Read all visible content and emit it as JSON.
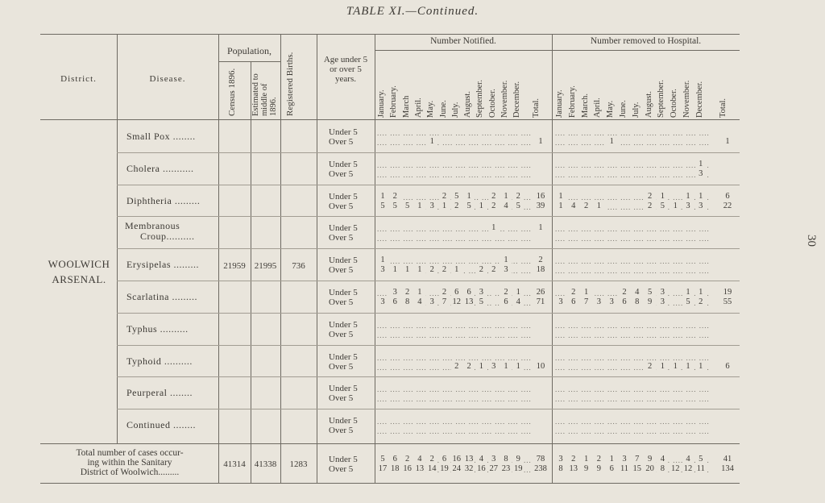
{
  "title": "TABLE XI.—Continued.",
  "page_number": "30",
  "headers": {
    "district": "District.",
    "disease": "Disease.",
    "population": "Population,",
    "census": "Census 1896.",
    "estimated": "Estimated to middle of 1896.",
    "births": "Registered Births.",
    "age": "Age under 5 or over 5 years.",
    "number_notified": "Number Notified.",
    "number_removed": "Number removed to Hospital.",
    "months_notified": [
      "January.",
      "February.",
      "March",
      "April.",
      "May.",
      "June.",
      "July.",
      "August.",
      "September.",
      "October.",
      "November.",
      "December.",
      "Total."
    ],
    "months_removed": [
      "January.",
      "February.",
      "March.",
      "April.",
      "May.",
      "June.",
      "July.",
      "August.",
      "September.",
      "October.",
      "November.",
      "December.",
      "Total."
    ]
  },
  "district": {
    "name_line1": "WOOLWICH",
    "name_line2": "ARSENAL.",
    "census": "21959",
    "estimated": "21995",
    "births": "736"
  },
  "age_labels": {
    "under": "Under 5",
    "over": "Over 5"
  },
  "diseases": [
    {
      "name": "Small Pox ........",
      "notified_under": [
        "",
        "",
        "",
        "",
        "",
        "",
        "",
        "",
        "",
        "",
        "",
        "",
        ""
      ],
      "notified_over": [
        "",
        "",
        "",
        "",
        "1",
        "",
        "",
        "",
        "",
        "",
        "",
        "",
        "1"
      ],
      "removed_under": [
        "",
        "",
        "",
        "",
        "",
        "",
        "",
        "",
        "",
        "",
        "",
        "",
        ""
      ],
      "removed_over": [
        "",
        "",
        "",
        "",
        "1",
        "",
        "",
        "",
        "",
        "",
        "",
        "",
        "1"
      ]
    },
    {
      "name": "Cholera ...........",
      "notified_under": [
        "",
        "",
        "",
        "",
        "",
        "",
        "",
        "",
        "",
        "",
        "",
        "",
        ""
      ],
      "notified_over": [
        "",
        "",
        "",
        "",
        "",
        "",
        "",
        "",
        "",
        "",
        "",
        "",
        ""
      ],
      "removed_under": [
        "",
        "",
        "",
        "",
        "",
        "",
        "",
        "",
        "",
        "",
        "",
        "1",
        ""
      ],
      "removed_over": [
        "",
        "",
        "",
        "",
        "",
        "",
        "",
        "",
        "",
        "",
        "",
        "3",
        ""
      ]
    },
    {
      "name": "Diphtheria .........",
      "notified_under": [
        "1",
        "2",
        "",
        "",
        "",
        "2",
        "5",
        "1",
        "",
        "2",
        "1",
        "2",
        "16"
      ],
      "notified_over": [
        "5",
        "5",
        "5",
        "1",
        "3",
        "1",
        "2",
        "5",
        "1",
        "2",
        "4",
        "5",
        "39"
      ],
      "removed_under": [
        "1",
        "",
        "",
        "",
        "",
        "",
        "",
        "2",
        "1",
        "",
        "1",
        "1",
        "6"
      ],
      "removed_over": [
        "1",
        "4",
        "2",
        "1",
        "",
        "",
        "",
        "2",
        "5",
        "1",
        "3",
        "3",
        "22"
      ]
    },
    {
      "name_line1": "Membranous",
      "name": "Croup..........",
      "notified_under": [
        "",
        "",
        "",
        "",
        "",
        "",
        "",
        "",
        "",
        "1",
        "",
        "",
        "1"
      ],
      "notified_over": [
        "",
        "",
        "",
        "",
        "",
        "",
        "",
        "",
        "",
        "",
        "",
        "",
        ""
      ],
      "removed_under": [
        "",
        "",
        "",
        "",
        "",
        "",
        "",
        "",
        "",
        "",
        "",
        "",
        ""
      ],
      "removed_over": [
        "",
        "",
        "",
        "",
        "",
        "",
        "",
        "",
        "",
        "",
        "",
        "",
        ""
      ]
    },
    {
      "name": "Erysipelas .........",
      "notified_under": [
        "1",
        "",
        "",
        "",
        "",
        "",
        "",
        "",
        "",
        "",
        "1",
        "",
        "2"
      ],
      "notified_over": [
        "3",
        "1",
        "1",
        "1",
        "2",
        "2",
        "1",
        "",
        "2",
        "2",
        "3",
        "",
        "18"
      ],
      "removed_under": [
        "",
        "",
        "",
        "",
        "",
        "",
        "",
        "",
        "",
        "",
        "",
        "",
        ""
      ],
      "removed_over": [
        "",
        "",
        "",
        "",
        "",
        "",
        "",
        "",
        "",
        "",
        "",
        "",
        ""
      ]
    },
    {
      "name": "Scarlatina .........",
      "notified_under": [
        "",
        "3",
        "2",
        "1",
        "",
        "2",
        "6",
        "6",
        "3",
        "",
        "2",
        "1",
        "26"
      ],
      "notified_over": [
        "3",
        "6",
        "8",
        "4",
        "3",
        "7",
        "12",
        "13",
        "5",
        "",
        "6",
        "4",
        "71"
      ],
      "removed_under": [
        "",
        "2",
        "1",
        "",
        "",
        "2",
        "4",
        "5",
        "3",
        "",
        "1",
        "1",
        "19"
      ],
      "removed_over": [
        "3",
        "6",
        "7",
        "3",
        "3",
        "6",
        "8",
        "9",
        "3",
        "",
        "5",
        "2",
        "55"
      ]
    },
    {
      "name": "Typhus ..........",
      "notified_under": [
        "",
        "",
        "",
        "",
        "",
        "",
        "",
        "",
        "",
        "",
        "",
        "",
        ""
      ],
      "notified_over": [
        "",
        "",
        "",
        "",
        "",
        "",
        "",
        "",
        "",
        "",
        "",
        "",
        ""
      ],
      "removed_under": [
        "",
        "",
        "",
        "",
        "",
        "",
        "",
        "",
        "",
        "",
        "",
        "",
        ""
      ],
      "removed_over": [
        "",
        "",
        "",
        "",
        "",
        "",
        "",
        "",
        "",
        "",
        "",
        "",
        ""
      ]
    },
    {
      "name": "Typhoid ..........",
      "notified_under": [
        "",
        "",
        "",
        "",
        "",
        "",
        "",
        "",
        "",
        "",
        "",
        "",
        ""
      ],
      "notified_over": [
        "",
        "",
        "",
        "",
        "",
        "",
        "2",
        "2",
        "1",
        "3",
        "1",
        "1",
        "10"
      ],
      "removed_under": [
        "",
        "",
        "",
        "",
        "",
        "",
        "",
        "",
        "",
        "",
        "",
        "",
        ""
      ],
      "removed_over": [
        "",
        "",
        "",
        "",
        "",
        "",
        "",
        "2",
        "1",
        "1",
        "1",
        "1",
        "6"
      ]
    },
    {
      "name": "Peurperal ........",
      "notified_under": [
        "",
        "",
        "",
        "",
        "",
        "",
        "",
        "",
        "",
        "",
        "",
        "",
        ""
      ],
      "notified_over": [
        "",
        "",
        "",
        "",
        "",
        "",
        "",
        "",
        "",
        "",
        "",
        "",
        ""
      ],
      "removed_under": [
        "",
        "",
        "",
        "",
        "",
        "",
        "",
        "",
        "",
        "",
        "",
        "",
        ""
      ],
      "removed_over": [
        "",
        "",
        "",
        "",
        "",
        "",
        "",
        "",
        "",
        "",
        "",
        "",
        ""
      ]
    },
    {
      "name": "Continued ........",
      "notified_under": [
        "",
        "",
        "",
        "",
        "",
        "",
        "",
        "",
        "",
        "",
        "",
        "",
        ""
      ],
      "notified_over": [
        "",
        "",
        "",
        "",
        "",
        "",
        "",
        "",
        "",
        "",
        "",
        "",
        ""
      ],
      "removed_under": [
        "",
        "",
        "",
        "",
        "",
        "",
        "",
        "",
        "",
        "",
        "",
        "",
        ""
      ],
      "removed_over": [
        "",
        "",
        "",
        "",
        "",
        "",
        "",
        "",
        "",
        "",
        "",
        "",
        ""
      ]
    }
  ],
  "total": {
    "label_line1": "Total number of cases occur-",
    "label_line2": "ing within the Sanitary",
    "label_line3": "District of Woolwich.........",
    "census": "41314",
    "estimated": "41338",
    "births": "1283",
    "notified_under": [
      "5",
      "6",
      "2",
      "4",
      "2",
      "6",
      "16",
      "13",
      "4",
      "3",
      "8",
      "9",
      "78"
    ],
    "notified_over": [
      "17",
      "18",
      "16",
      "13",
      "14",
      "19",
      "24",
      "32",
      "16",
      "27",
      "23",
      "19",
      "238"
    ],
    "removed_under": [
      "3",
      "2",
      "1",
      "2",
      "1",
      "3",
      "7",
      "9",
      "4",
      "",
      "4",
      "5",
      "41"
    ],
    "removed_over": [
      "8",
      "13",
      "9",
      "9",
      "6",
      "11",
      "15",
      "20",
      "8",
      "12",
      "12",
      "11",
      "134"
    ]
  }
}
